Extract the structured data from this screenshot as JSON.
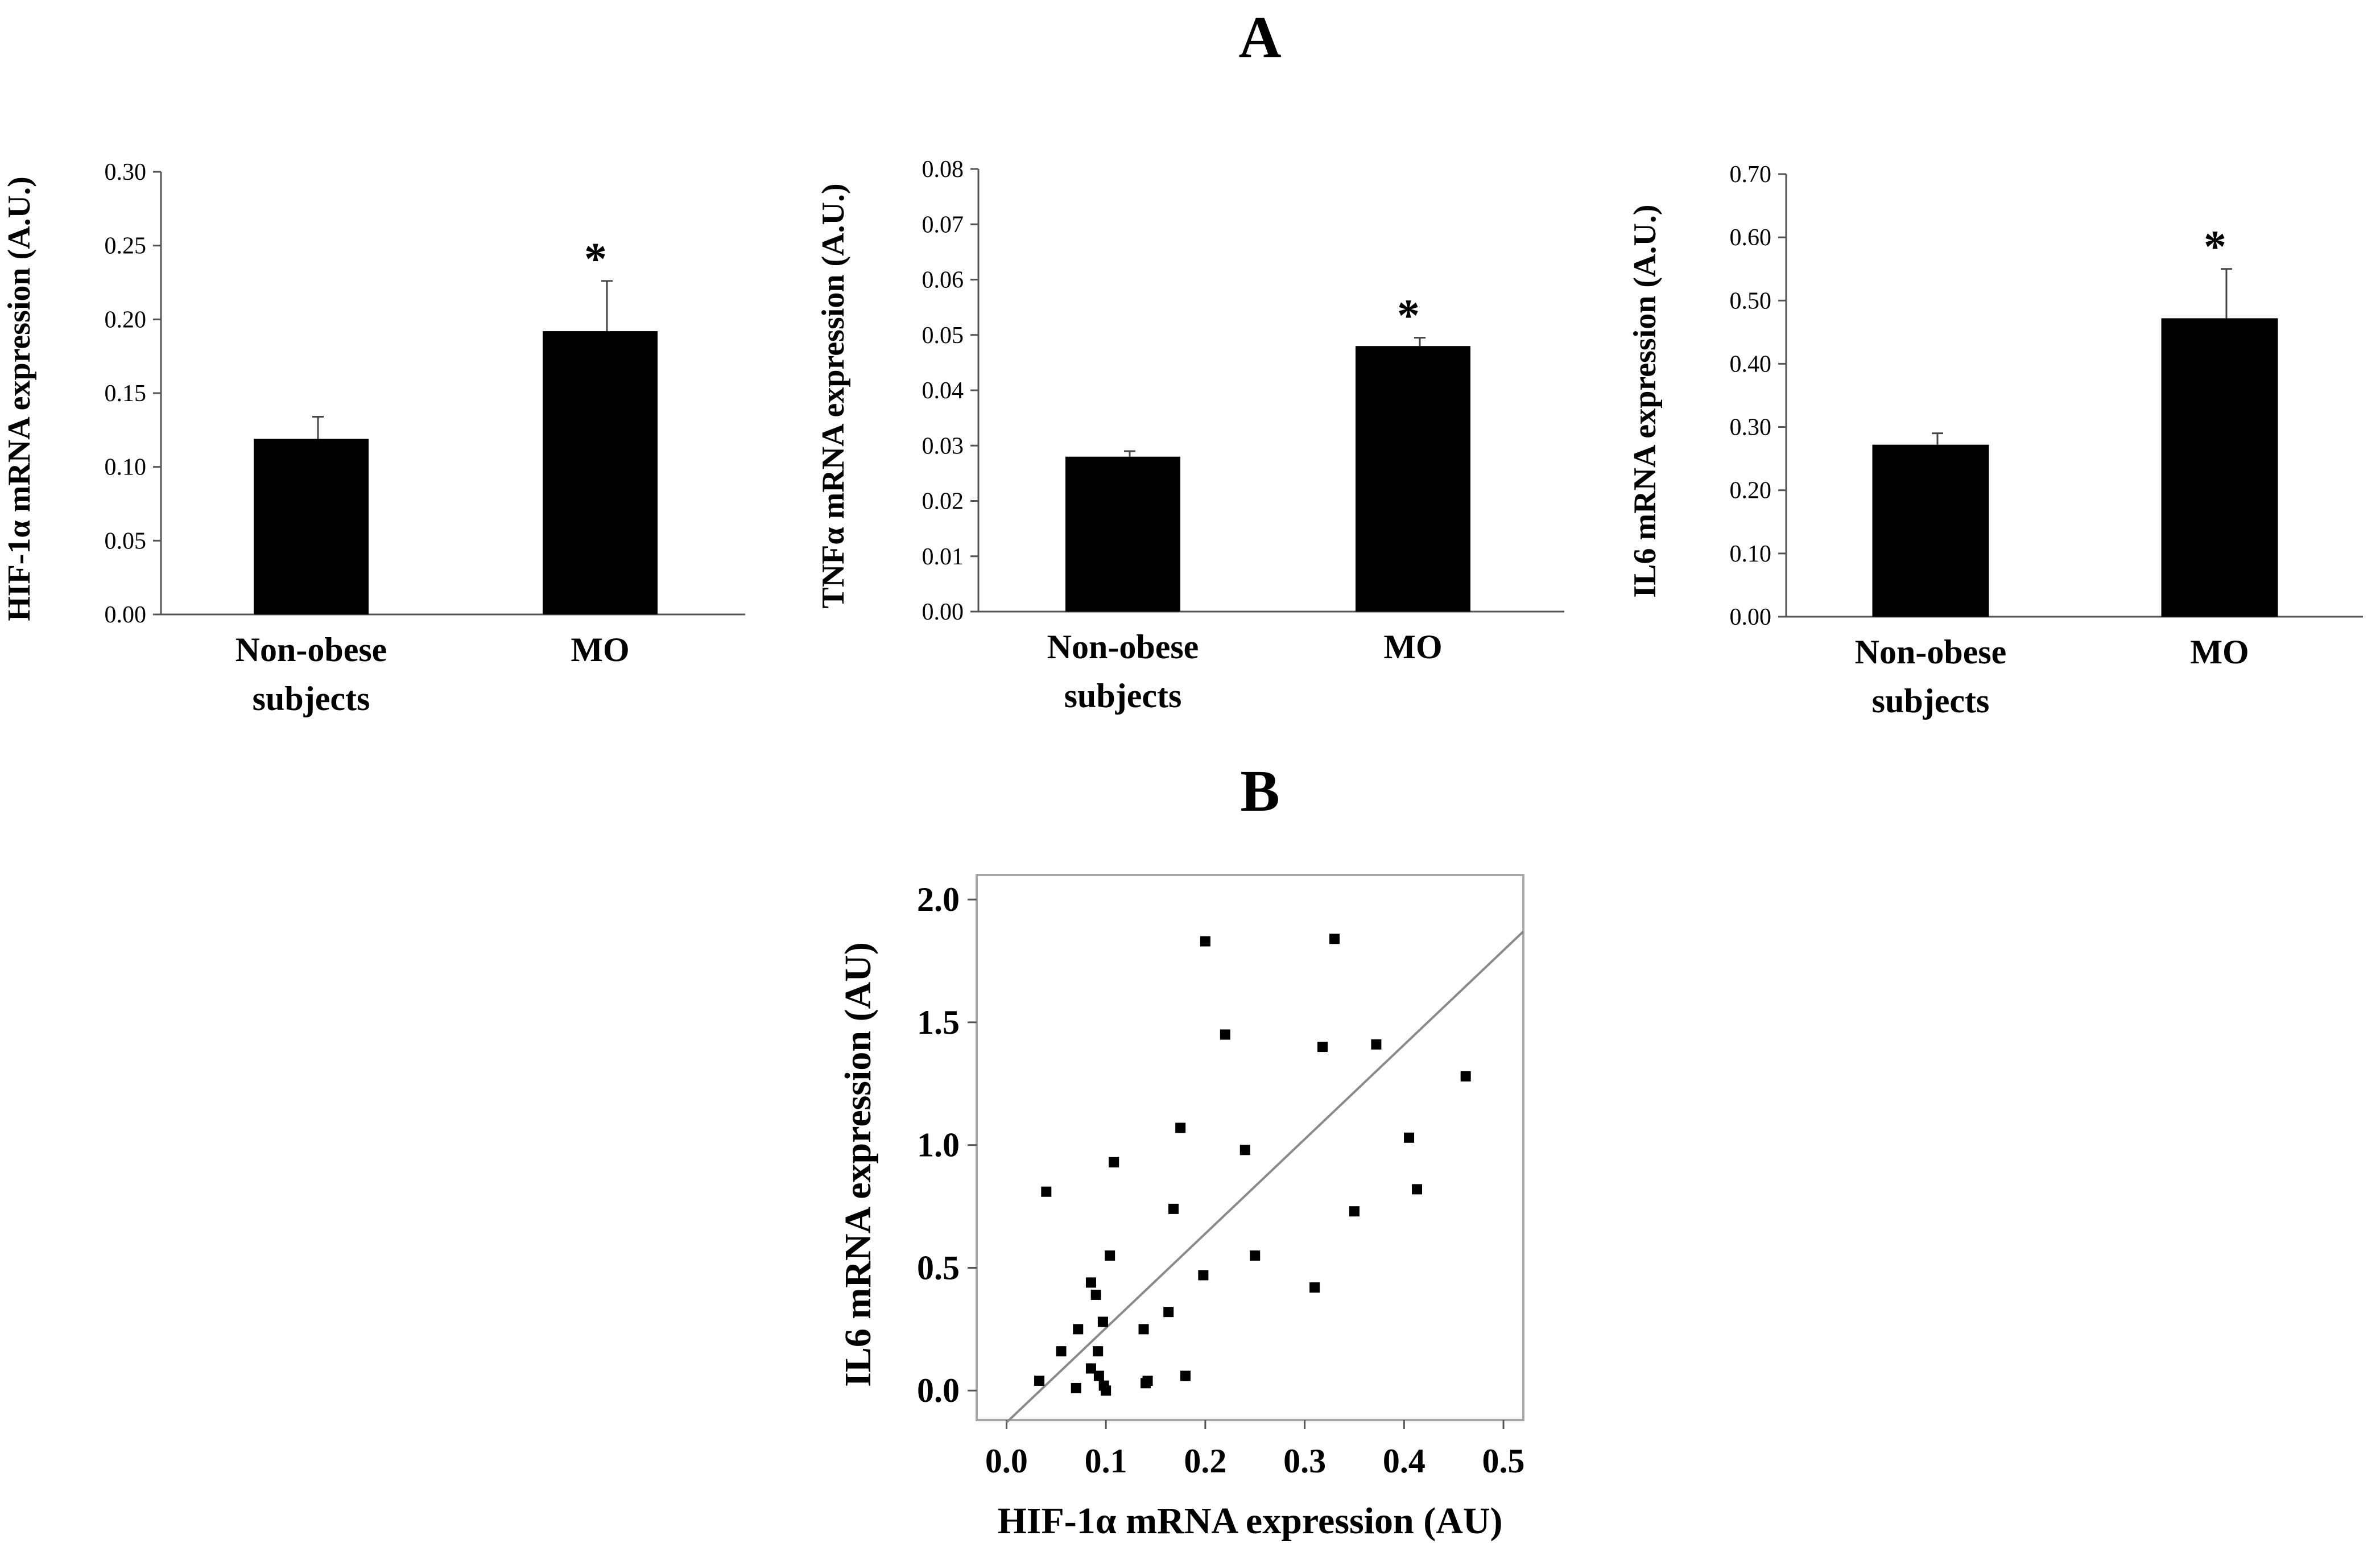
{
  "panel_labels": {
    "a": "A",
    "b": "B"
  },
  "chart_data": [
    {
      "id": "hif",
      "type": "bar",
      "panel": "A",
      "title": "",
      "xlabel": "",
      "ylabel": "HIF-1α mRNA expression (A.U.)",
      "categories": [
        "Non-obese subjects",
        "MO"
      ],
      "values": [
        0.119,
        0.192
      ],
      "errors": [
        0.015,
        0.034
      ],
      "significance": [
        "",
        "*"
      ],
      "ylim": [
        0,
        0.3
      ],
      "yticks": [
        "0.00",
        "0.05",
        "0.10",
        "0.15",
        "0.20",
        "0.25",
        "0.30"
      ],
      "bar_color": "#000000",
      "grid": false
    },
    {
      "id": "tnf",
      "type": "bar",
      "panel": "A",
      "title": "",
      "xlabel": "",
      "ylabel": "TNFα mRNA expression (A.U.)",
      "categories": [
        "Non-obese subjects",
        "MO"
      ],
      "values": [
        0.028,
        0.048
      ],
      "errors": [
        0.001,
        0.0015
      ],
      "significance": [
        "",
        "*"
      ],
      "ylim": [
        0,
        0.08
      ],
      "yticks": [
        "0.00",
        "0.01",
        "0.02",
        "0.03",
        "0.04",
        "0.05",
        "0.06",
        "0.07",
        "0.08"
      ],
      "bar_color": "#000000",
      "grid": false
    },
    {
      "id": "il6",
      "type": "bar",
      "panel": "A",
      "title": "",
      "xlabel": "",
      "ylabel": "IL6 mRNA expression (A.U.)",
      "categories": [
        "Non-obese subjects",
        "MO"
      ],
      "values": [
        0.272,
        0.472
      ],
      "errors": [
        0.018,
        0.078
      ],
      "significance": [
        "",
        "*"
      ],
      "ylim": [
        0,
        0.7
      ],
      "yticks": [
        "0.00",
        "0.10",
        "0.20",
        "0.30",
        "0.40",
        "0.50",
        "0.60",
        "0.70"
      ],
      "bar_color": "#000000",
      "grid": false
    },
    {
      "id": "scatter",
      "type": "scatter",
      "panel": "B",
      "title": "",
      "xlabel": "HIF-1α mRNA expression (AU)",
      "ylabel": "IL6 mRNA expression (AU)",
      "xlim": [
        -0.03,
        0.52
      ],
      "ylim": [
        -0.12,
        2.1
      ],
      "xticks": [
        0.0,
        0.1,
        0.2,
        0.3,
        0.4,
        0.5
      ],
      "xtick_labels": [
        "0.0",
        "0.1",
        "0.2",
        "0.3",
        "0.4",
        "0.5"
      ],
      "yticks": [
        0.0,
        0.5,
        1.0,
        1.5,
        2.0
      ],
      "ytick_labels": [
        "0.0",
        "0.5",
        "1.0",
        "1.5",
        "2.0"
      ],
      "x": [
        0.033,
        0.04,
        0.055,
        0.07,
        0.072,
        0.085,
        0.085,
        0.09,
        0.092,
        0.093,
        0.097,
        0.098,
        0.1,
        0.104,
        0.108,
        0.108,
        0.138,
        0.14,
        0.142,
        0.163,
        0.168,
        0.175,
        0.18,
        0.198,
        0.2,
        0.22,
        0.24,
        0.25,
        0.31,
        0.318,
        0.33,
        0.35,
        0.372,
        0.405,
        0.413,
        0.462
      ],
      "y": [
        0.04,
        0.81,
        0.16,
        0.01,
        0.25,
        0.44,
        0.09,
        0.39,
        0.16,
        0.06,
        0.28,
        0.02,
        0.0,
        0.55,
        0.93,
        0.93,
        0.25,
        0.03,
        0.04,
        0.32,
        0.74,
        1.07,
        0.06,
        0.47,
        1.83,
        1.45,
        0.98,
        0.55,
        0.42,
        1.4,
        1.84,
        0.73,
        1.41,
        1.03,
        0.82,
        1.28
      ],
      "fit_line": {
        "x": [
          0.0,
          0.52
        ],
        "y": [
          -0.13,
          1.87
        ]
      },
      "marker_color": "#000000",
      "line_color": "#8a8a8a",
      "frame_color": "#a8a8a8",
      "grid": false
    }
  ]
}
